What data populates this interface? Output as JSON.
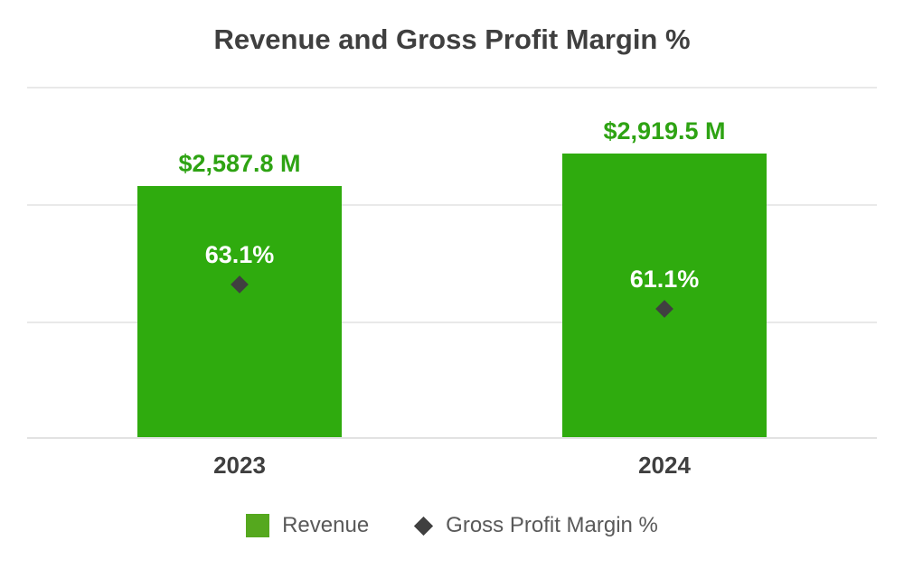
{
  "title": "Revenue and Gross Profit Margin %",
  "colors": {
    "bar_green": "#2FAB0E",
    "value_green": "#2EA313",
    "legend_green": "#55A81E",
    "marker_gray": "#404040",
    "title_gray": "#3F3F3F",
    "legend_text": "#595959",
    "gridline": "#E9E9E9",
    "percent_white": "#FFFFFF"
  },
  "legend": {
    "items": [
      {
        "label": "Revenue",
        "swatch": "green-square"
      },
      {
        "label": "Gross Profit Margin %",
        "swatch": "dark-diamond"
      }
    ]
  },
  "chart_data": {
    "type": "bar",
    "title": "Revenue and Gross Profit Margin %",
    "categories": [
      "2023",
      "2024"
    ],
    "series": [
      {
        "name": "Revenue",
        "type": "bar",
        "unit": "USD millions",
        "values": [
          2587.8,
          2919.5
        ],
        "labels": [
          "$2,587.8 M",
          "$2,919.5 M"
        ],
        "color": "#2FAB0E"
      },
      {
        "name": "Gross Profit Margin %",
        "type": "scatter",
        "marker": "diamond",
        "unit": "percent",
        "values": [
          63.1,
          61.1
        ],
        "labels": [
          "63.1%",
          "61.1%"
        ],
        "color": "#404040"
      }
    ],
    "xlabel": "",
    "ylabel": "",
    "axis_tick_labels_visible": false,
    "grid": true,
    "gridline_count": 4,
    "legend_position": "bottom"
  }
}
